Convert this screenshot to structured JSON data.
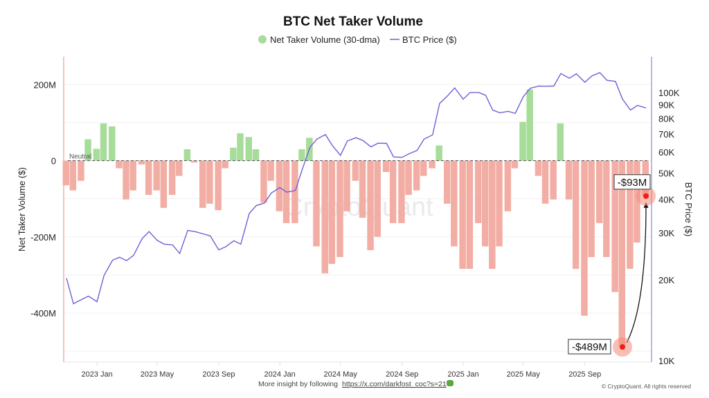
{
  "chart_data": {
    "type": "bar+line",
    "title": "BTC Net Taker Volume",
    "legend": {
      "placement": "top-center",
      "items": [
        {
          "label": "Net Taker Volume (30-dma)",
          "symbol": "circle",
          "color": "#a8dc9a"
        },
        {
          "label": "BTC Price ($)",
          "symbol": "line",
          "color": "#6f5fd6"
        }
      ]
    },
    "ylabel_left": "Net Taker Volume ($)",
    "ylabel_right": "BTC Price ($)",
    "ylim_left": [
      -525,
      273
    ],
    "ylim_right": [
      10000,
      136000
    ],
    "right_scale": "log",
    "grid": true,
    "yticks_left": [
      {
        "value": 200,
        "label": "200M"
      },
      {
        "value": 0,
        "label": "0"
      },
      {
        "value": -200,
        "label": "-200M"
      },
      {
        "value": -400,
        "label": "-400M"
      }
    ],
    "yticks_right": [
      {
        "value": 10000,
        "label": "10K"
      },
      {
        "value": 20000,
        "label": "20K"
      },
      {
        "value": 30000,
        "label": "30K"
      },
      {
        "value": 40000,
        "label": "40K"
      },
      {
        "value": 50000,
        "label": "50K"
      },
      {
        "value": 60000,
        "label": "60K"
      },
      {
        "value": 70000,
        "label": "70K"
      },
      {
        "value": 80000,
        "label": "80K"
      },
      {
        "value": 90000,
        "label": "90K"
      },
      {
        "value": 100000,
        "label": "100K"
      }
    ],
    "xticks": [
      {
        "date": "2023-01-01",
        "label": "2023 Jan"
      },
      {
        "date": "2023-05-01",
        "label": "2023 May"
      },
      {
        "date": "2023-09-01",
        "label": "2023 Sep"
      },
      {
        "date": "2024-01-01",
        "label": "2024 Jan"
      },
      {
        "date": "2024-05-01",
        "label": "2024 May"
      },
      {
        "date": "2024-09-01",
        "label": "2024 Sep"
      },
      {
        "date": "2025-01-01",
        "label": "2025 Jan"
      },
      {
        "date": "2025-05-01",
        "label": "2025 May"
      },
      {
        "date": "2025-09-01",
        "label": "2025 Sep"
      }
    ],
    "neutral_label": "Neutral",
    "colors": {
      "positive": "#a8dc9a",
      "negative": "#f2aea5",
      "price": "#6f5fd6",
      "left_axis": "#f2aea5",
      "right_axis": "#a79ee0"
    },
    "x": [
      "2022-11-01",
      "2022-11-15",
      "2022-12-01",
      "2022-12-15",
      "2023-01-01",
      "2023-01-15",
      "2023-02-01",
      "2023-02-15",
      "2023-03-01",
      "2023-03-15",
      "2023-04-01",
      "2023-04-15",
      "2023-05-01",
      "2023-05-15",
      "2023-06-01",
      "2023-06-15",
      "2023-07-01",
      "2023-07-15",
      "2023-08-01",
      "2023-08-15",
      "2023-09-01",
      "2023-09-15",
      "2023-10-01",
      "2023-10-15",
      "2023-11-01",
      "2023-11-15",
      "2023-12-01",
      "2023-12-15",
      "2024-01-01",
      "2024-01-15",
      "2024-02-01",
      "2024-02-15",
      "2024-03-01",
      "2024-03-15",
      "2024-04-01",
      "2024-04-15",
      "2024-05-01",
      "2024-05-15",
      "2024-06-01",
      "2024-06-15",
      "2024-07-01",
      "2024-07-15",
      "2024-08-01",
      "2024-08-15",
      "2024-09-01",
      "2024-09-15",
      "2024-10-01",
      "2024-10-15",
      "2024-11-01",
      "2024-11-15",
      "2024-12-01",
      "2024-12-15",
      "2025-01-01",
      "2025-01-15",
      "2025-02-01",
      "2025-02-15",
      "2025-03-01",
      "2025-03-15",
      "2025-04-01",
      "2025-04-15",
      "2025-05-01",
      "2025-05-15",
      "2025-06-01",
      "2025-06-15",
      "2025-07-01",
      "2025-07-15",
      "2025-08-01",
      "2025-08-15",
      "2025-09-01",
      "2025-09-15",
      "2025-10-01",
      "2025-10-15",
      "2025-11-01",
      "2025-11-15",
      "2025-12-01",
      "2025-12-15",
      "2026-01-01"
    ],
    "series": [
      {
        "name": "Net Taker Volume (30-dma)",
        "unit": "M USD",
        "values": [
          -65,
          -78,
          -53,
          56,
          31,
          98,
          90,
          -20,
          -102,
          -78,
          -10,
          -90,
          -78,
          -124,
          -90,
          -40,
          30,
          -5,
          -124,
          -113,
          -130,
          -20,
          34,
          72,
          62,
          30,
          -110,
          -53,
          -133,
          -164,
          -164,
          30,
          60,
          -225,
          -296,
          -271,
          -253,
          -133,
          -53,
          -150,
          -235,
          -200,
          -30,
          -164,
          -164,
          -90,
          -78,
          -40,
          -20,
          40,
          -113,
          -225,
          -284,
          -284,
          -164,
          -225,
          -284,
          -225,
          -133,
          -20,
          102,
          187,
          -40,
          -113,
          -102,
          98,
          -102,
          -284,
          -407,
          -253,
          -164,
          -253,
          -345,
          -489,
          -284,
          -215,
          -93
        ]
      },
      {
        "name": "BTC Price ($)",
        "unit": "USD",
        "values": [
          20300,
          16300,
          16900,
          17400,
          16600,
          20800,
          23700,
          24300,
          23600,
          24700,
          28500,
          30300,
          28100,
          27200,
          27000,
          25100,
          30600,
          30300,
          29700,
          29200,
          25900,
          26600,
          28000,
          27200,
          35400,
          37900,
          38700,
          42200,
          44200,
          42500,
          43100,
          51800,
          62400,
          67000,
          69700,
          63400,
          58300,
          66000,
          67800,
          66200,
          62700,
          64700,
          64600,
          57500,
          57300,
          59100,
          60800,
          67000,
          69500,
          91000,
          97200,
          104000,
          94400,
          100000,
          100000,
          97500,
          86000,
          84000,
          85000,
          83600,
          96500,
          103700,
          105600,
          105500,
          105700,
          117700,
          113000,
          117400,
          109200,
          115300,
          118600,
          111000,
          110000,
          94500,
          86000,
          89500,
          87500
        ]
      }
    ],
    "annotations": [
      {
        "date": "2025-11-15",
        "value": -489,
        "label": "-$489M"
      },
      {
        "date": "2026-01-01",
        "value": -93,
        "label": "-$93M"
      }
    ],
    "watermark": "CryptoQuant"
  },
  "footer": {
    "prefix": "More insight by following",
    "link": "https://x.com/darkfost_coc?s=21",
    "copyright": "© CryptoQuant. All rights reserved"
  }
}
